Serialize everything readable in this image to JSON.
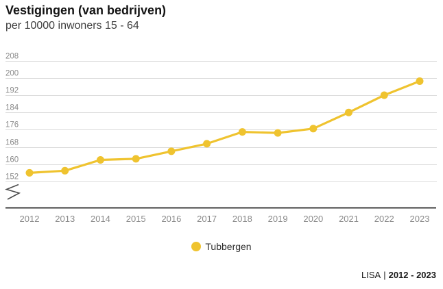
{
  "header": {
    "title": "Vestigingen (van bedrijven)",
    "subtitle": "per 10000 inwoners 15 - 64"
  },
  "chart_data": {
    "type": "line",
    "title": "Vestigingen (van bedrijven)",
    "subtitle": "per 10000 inwoners 15 - 64",
    "categories": [
      "2012",
      "2013",
      "2014",
      "2015",
      "2016",
      "2017",
      "2018",
      "2019",
      "2020",
      "2021",
      "2022",
      "2023"
    ],
    "series": [
      {
        "name": "Tubbergen",
        "values": [
          156,
          157,
          162,
          162.5,
          166,
          169.5,
          175,
          174.5,
          176.5,
          184,
          192,
          198.5
        ]
      }
    ],
    "yticks": [
      152,
      160,
      168,
      176,
      184,
      192,
      200,
      208
    ],
    "ylim": [
      152,
      208
    ],
    "axis_break": true,
    "grid": "horizontal",
    "legend_position": "bottom",
    "xlabel": "",
    "ylabel": ""
  },
  "legend": {
    "items": [
      {
        "label": "Tubbergen",
        "color": "#EFC32F"
      }
    ]
  },
  "footer": {
    "source": "LISA",
    "separator": "|",
    "range": "2012 - 2023"
  },
  "colors": {
    "accent": "#EFC32F",
    "gridline": "#DBDBDB",
    "axis": "#3F3F3F",
    "tick_label": "#8A8A8A",
    "break_glyph": "#4a4a4a"
  }
}
